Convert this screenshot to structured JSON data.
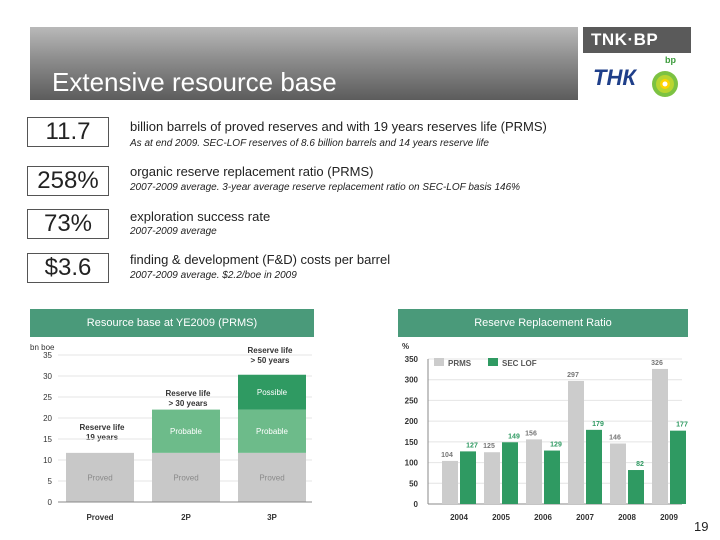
{
  "slide": {
    "title": "Extensive resource base",
    "page_number": "19"
  },
  "logo": {
    "brand": "TNK·BP",
    "mark": "ТНК",
    "sub": "bp"
  },
  "kpis": [
    {
      "value": "11.7",
      "main": "billion barrels of proved reserves and with 19 years reserves life (PRMS)",
      "sub": "As at end 2009. SEC-LOF reserves of 8.6 billion barrels and 14 years reserve life"
    },
    {
      "value": "258%",
      "main": "organic reserve replacement ratio (PRMS)",
      "sub": "2007-2009 average. 3-year average reserve replacement ratio on SEC-LOF basis 146%"
    },
    {
      "value": "73%",
      "main": "exploration success rate",
      "sub": "2007-2009 average"
    },
    {
      "value": "$3.6",
      "main": "finding & development (F&D) costs per barrel",
      "sub": "2007-2009 average. $2.2/boe in 2009"
    }
  ],
  "panels": {
    "left_header": "Resource base at YE2009 (PRMS)",
    "right_header": "Reserve Replacement Ratio"
  },
  "chart_data": [
    {
      "type": "bar",
      "stacked": true,
      "title": "Resource base at YE2009 (PRMS)",
      "ylabel": "bn boe",
      "ylim": [
        0,
        35
      ],
      "yticks": [
        0,
        5,
        10,
        15,
        20,
        25,
        30,
        35
      ],
      "categories": [
        "Proved",
        "2P",
        "3P"
      ],
      "series": [
        {
          "name": "Proved",
          "values": [
            11.7,
            11.7,
            11.7
          ]
        },
        {
          "name": "Probable",
          "values": [
            0,
            10.3,
            10.3
          ]
        },
        {
          "name": "Possible",
          "values": [
            0,
            0,
            8.3
          ]
        }
      ],
      "annotations": [
        "Reserve life 19 years",
        "Reserve life > 30 years",
        "Reserve life > 50 years"
      ],
      "colors": {
        "Proved": "#c8c8c8",
        "Probable": "#6dbb8a",
        "Possible": "#2f9a62"
      }
    },
    {
      "type": "bar",
      "title": "Reserve Replacement Ratio",
      "ylabel": "%",
      "ylim": [
        0,
        350
      ],
      "yticks": [
        0,
        50,
        100,
        150,
        200,
        250,
        300,
        350
      ],
      "categories": [
        "2004",
        "2005",
        "2006",
        "2007",
        "2008",
        "2009"
      ],
      "series": [
        {
          "name": "PRMS",
          "values": [
            104,
            125,
            156,
            297,
            146,
            326
          ]
        },
        {
          "name": "SEC LOF",
          "values": [
            127,
            149,
            129,
            179,
            82,
            177
          ]
        }
      ],
      "legend": "top-left",
      "colors": {
        "PRMS": "#cccccc",
        "SEC LOF": "#2f9a62"
      }
    }
  ]
}
